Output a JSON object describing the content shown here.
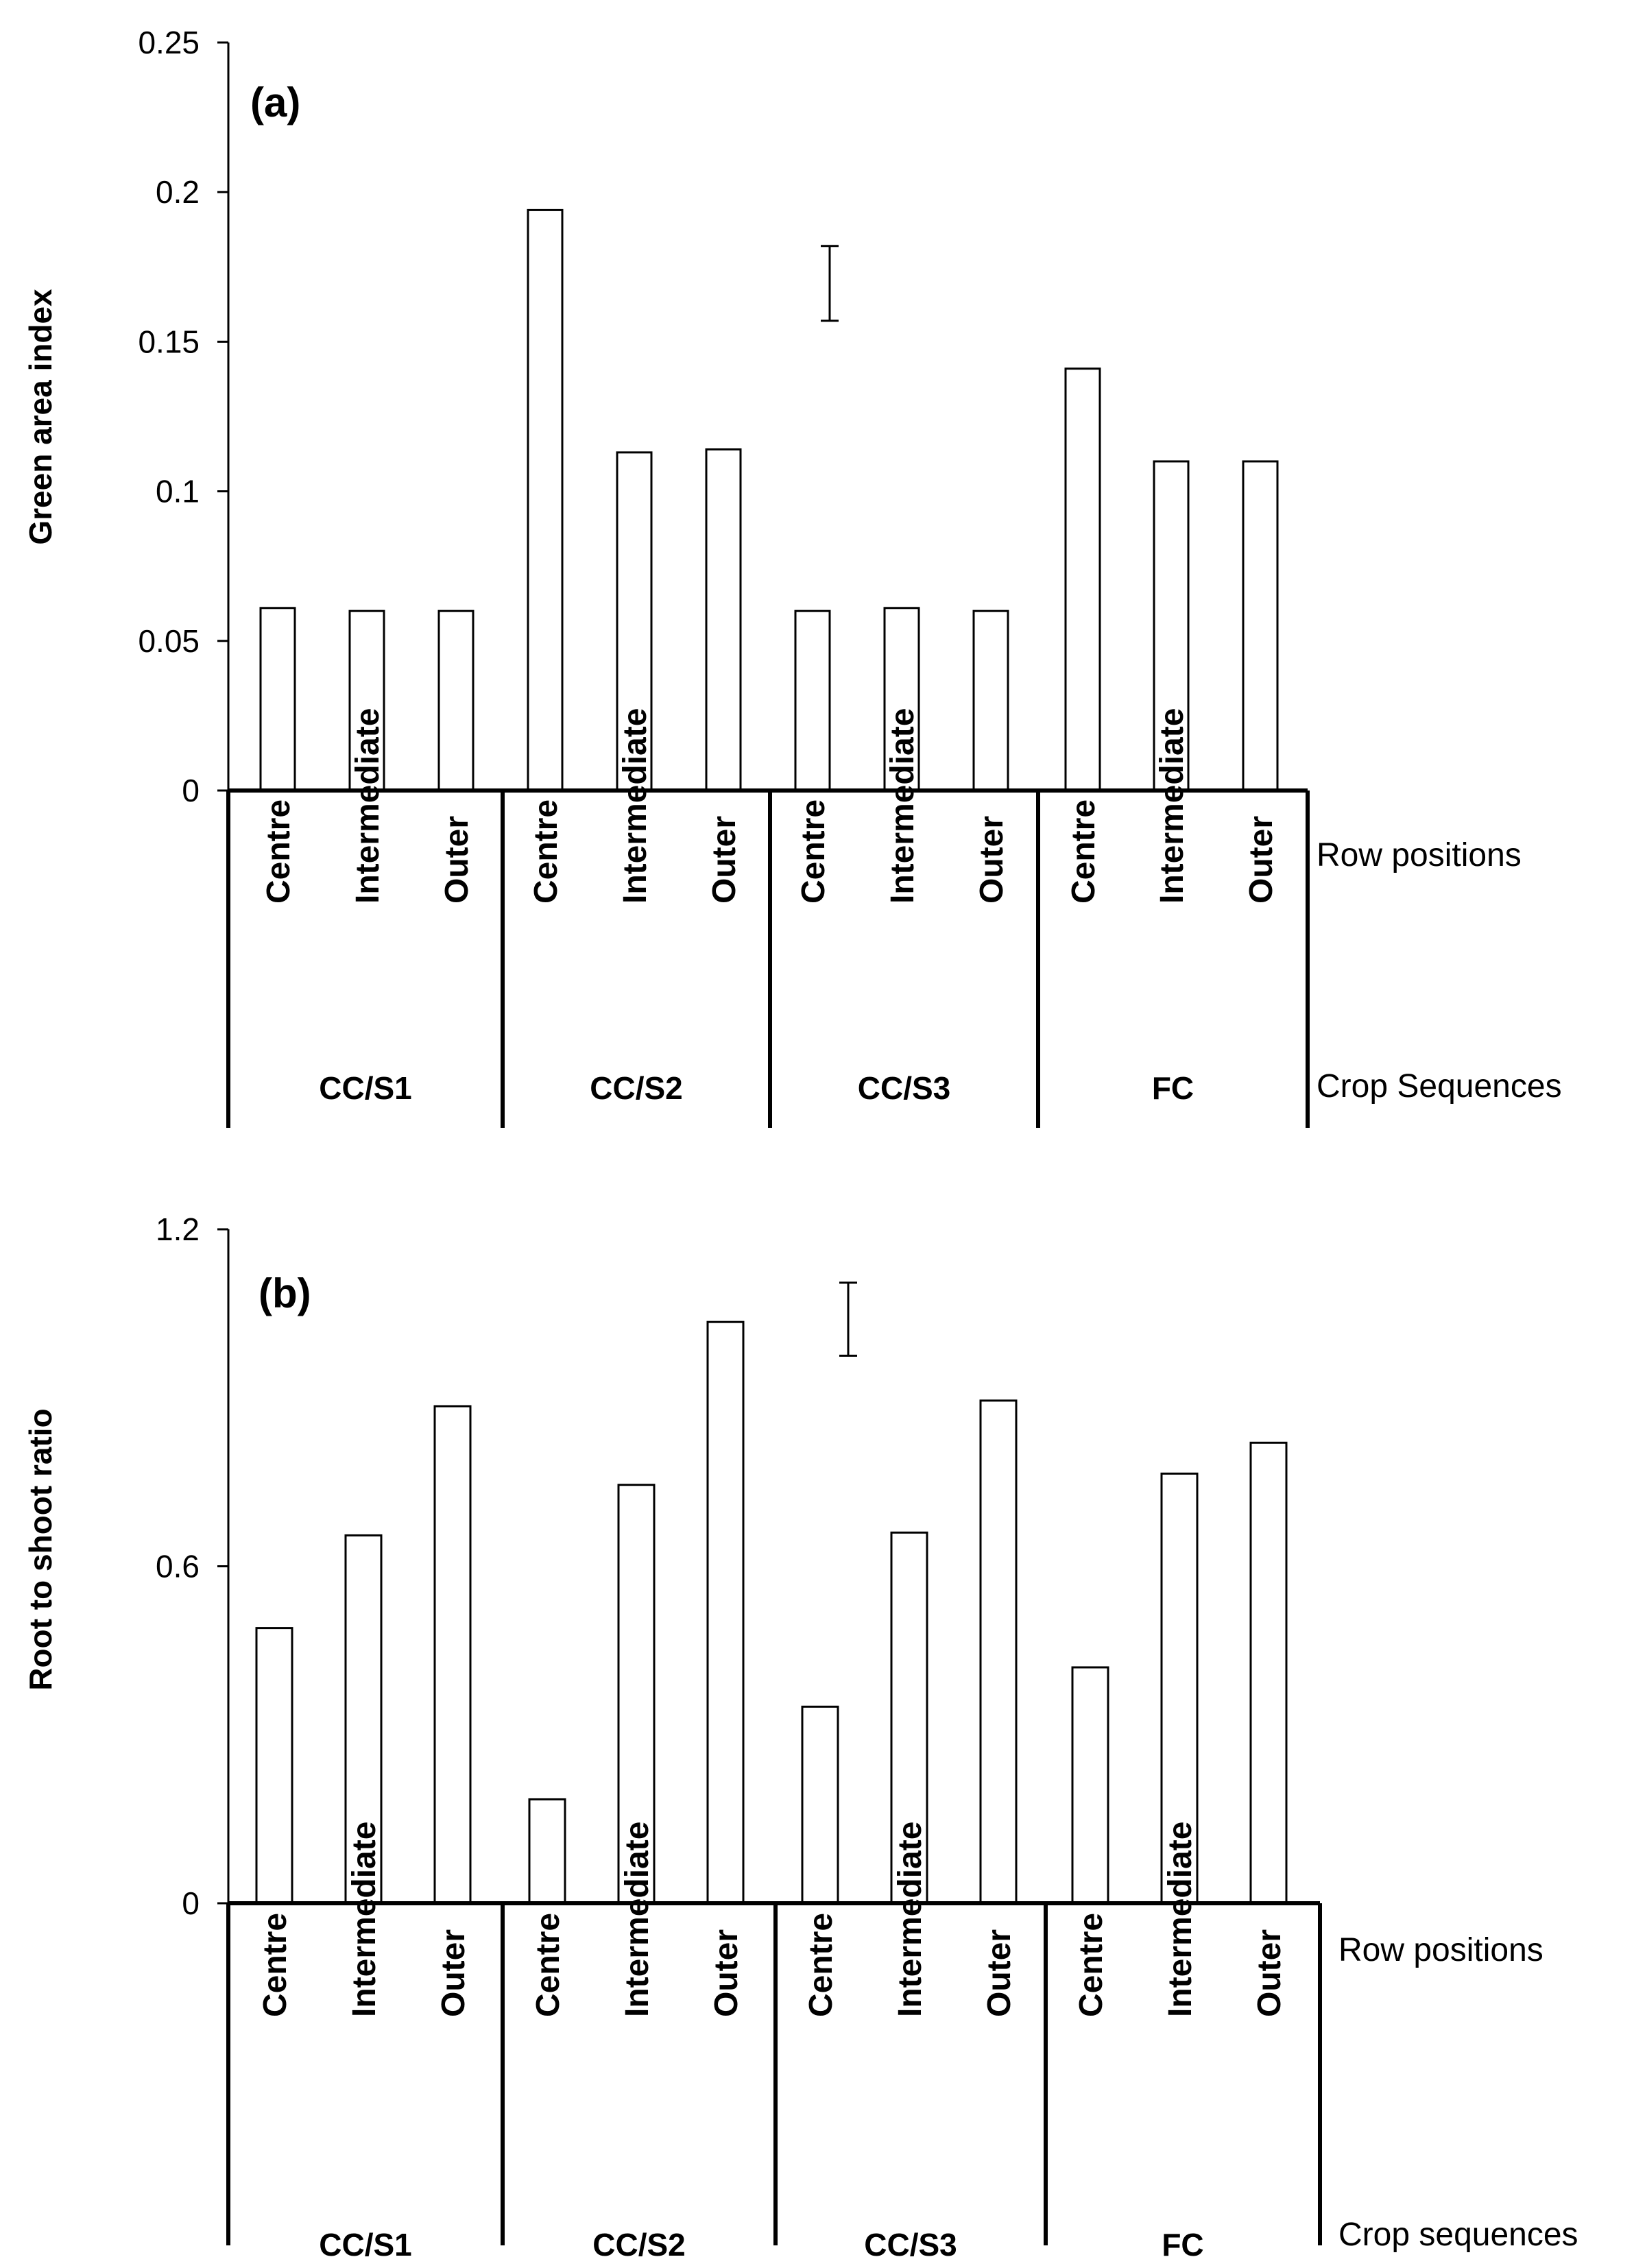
{
  "chart_data": [
    {
      "type": "bar",
      "panel_label": "(a)",
      "ylabel": "Green area index",
      "ylim": [
        0,
        0.25
      ],
      "yticks": [
        "0",
        "0.05",
        "0.1",
        "0.15",
        "0.2",
        "0.25"
      ],
      "ytick_values": [
        0,
        0.05,
        0.1,
        0.15,
        0.2,
        0.25
      ],
      "row_level_label": "Row positions",
      "group_level_label": "Crop Sequences",
      "groups": [
        {
          "name": "CC/S1",
          "categories": [
            "Centre",
            "Intermediate",
            "Outer"
          ],
          "values": [
            0.061,
            0.06,
            0.06
          ]
        },
        {
          "name": "CC/S2",
          "categories": [
            "Centre",
            "Intermediate",
            "Outer"
          ],
          "values": [
            0.194,
            0.113,
            0.114
          ]
        },
        {
          "name": "CC/S3",
          "categories": [
            "Centre",
            "Intermediate",
            "Outer"
          ],
          "values": [
            0.06,
            0.061,
            0.06
          ]
        },
        {
          "name": "FC",
          "categories": [
            "Centre",
            "Intermediate",
            "Outer"
          ],
          "values": [
            0.141,
            0.11,
            0.11
          ]
        }
      ],
      "error_bar": {
        "low": 0.157,
        "high": 0.182
      }
    },
    {
      "type": "bar",
      "panel_label": "(b)",
      "ylabel": "Root to shoot ratio",
      "ylim": [
        0,
        1.2
      ],
      "yticks": [
        "0",
        "0.6",
        "1.2"
      ],
      "ytick_values": [
        0,
        0.6,
        1.2
      ],
      "row_level_label": "Row positions",
      "group_level_label": "Crop sequences",
      "groups": [
        {
          "name": "CC/S1",
          "categories": [
            "Centre",
            "Intermediate",
            "Outer"
          ],
          "values": [
            0.49,
            0.655,
            0.885
          ]
        },
        {
          "name": "CC/S2",
          "categories": [
            "Centre",
            "Intermediate",
            "Outer"
          ],
          "values": [
            0.185,
            0.745,
            1.035
          ]
        },
        {
          "name": "CC/S3",
          "categories": [
            "Centre",
            "Intermediate",
            "Outer"
          ],
          "values": [
            0.35,
            0.66,
            0.895
          ]
        },
        {
          "name": "FC",
          "categories": [
            "Centre",
            "Intermediate",
            "Outer"
          ],
          "values": [
            0.42,
            0.765,
            0.82
          ]
        }
      ],
      "error_bar": {
        "low": 0.975,
        "high": 1.105
      }
    }
  ]
}
